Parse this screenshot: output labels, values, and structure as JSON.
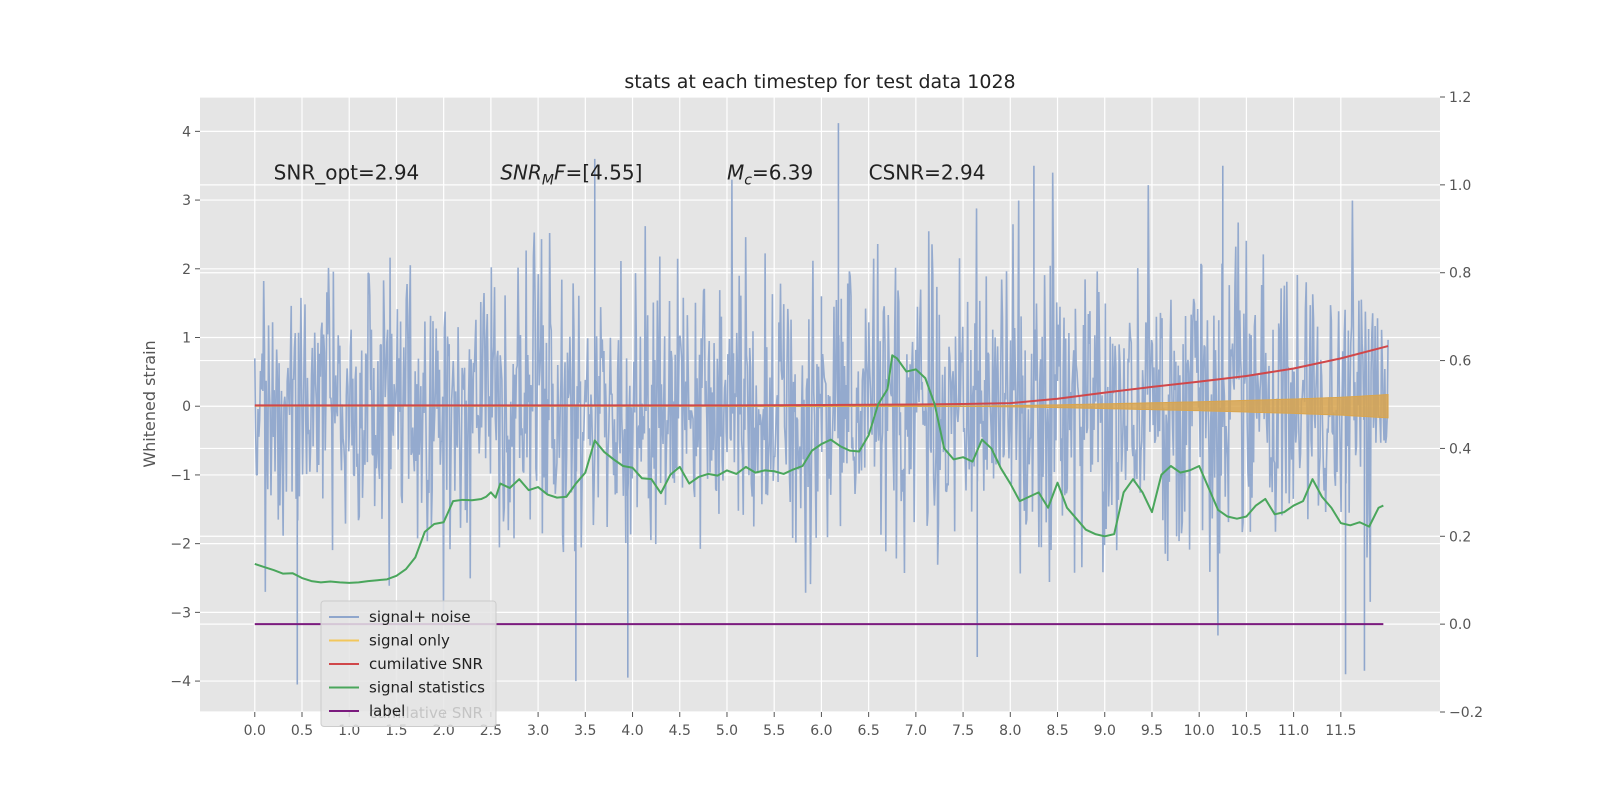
{
  "chart_data": {
    "type": "line",
    "title": "stats at each timestep for test data 1028",
    "ylabel": "Whitened strain",
    "xlabel": "",
    "xlim": [
      -0.58,
      12.55
    ],
    "ylim": [
      -4.45,
      4.5
    ],
    "y2lim": [
      -0.2,
      1.2
    ],
    "grid": true,
    "x_ticks": [
      "0.0",
      "0.5",
      "1.0",
      "1.5",
      "2.0",
      "2.5",
      "3.0",
      "3.5",
      "4.0",
      "4.5",
      "5.0",
      "5.5",
      "6.0",
      "6.5",
      "7.0",
      "7.5",
      "8.0",
      "8.5",
      "9.0",
      "9.5",
      "10.0",
      "10.5",
      "11.0",
      "11.5"
    ],
    "y_ticks": [
      "4",
      "3",
      "2",
      "1",
      "0",
      "−1",
      "−2",
      "−3",
      "−4"
    ],
    "y2_ticks": [
      "1.2",
      "1.0",
      "0.8",
      "0.6",
      "0.4",
      "0.2",
      "0.0",
      "−0.2"
    ],
    "annotations": [
      {
        "x": 0.2,
        "y": 3.3,
        "parts": [
          {
            "t": "SNR_opt=2.94",
            "style": "normal"
          }
        ]
      },
      {
        "x": 2.6,
        "y": 3.3,
        "parts": [
          {
            "t": "SNR",
            "style": "italic"
          },
          {
            "t": "M",
            "style": "italic-sub"
          },
          {
            "t": "F",
            "style": "italic"
          },
          {
            "t": "=[4.55]",
            "style": "normal"
          }
        ]
      },
      {
        "x": 5.0,
        "y": 3.3,
        "parts": [
          {
            "t": "M",
            "style": "italic"
          },
          {
            "t": "c",
            "style": "italic-sub"
          },
          {
            "t": "=6.39",
            "style": "normal"
          }
        ]
      },
      {
        "x": 6.5,
        "y": 3.3,
        "parts": [
          {
            "t": "CSNR=2.94",
            "style": "normal"
          }
        ]
      }
    ],
    "legend": {
      "placement": "lower-left",
      "ghost_text": "cumilative SNR",
      "entries": [
        {
          "label": "signal+ noise",
          "color": "#8fa6cc"
        },
        {
          "label": "signal only",
          "color": "#f2c75c"
        },
        {
          "label": "cumilative SNR",
          "color": "#d0474a"
        },
        {
          "label": "signal statistics",
          "color": "#4aa65c"
        },
        {
          "label": "label",
          "color": "#7b1b7e"
        }
      ]
    },
    "series": [
      {
        "name": "signal+ noise",
        "axis": "left",
        "color": "#8fa6cc",
        "kind": "noise",
        "x_range": [
          0.0,
          12.0
        ],
        "samples": 1400,
        "std": 1.0,
        "spike_events": [
          {
            "x": 6.18,
            "y": 4.12
          },
          {
            "x": 6.0,
            "y": 1.6
          },
          {
            "x": 3.4,
            "y": -4.0
          },
          {
            "x": 3.95,
            "y": -3.95
          },
          {
            "x": 0.45,
            "y": -4.05
          },
          {
            "x": 11.55,
            "y": -3.9
          },
          {
            "x": 11.75,
            "y": -3.85
          },
          {
            "x": 7.65,
            "y": -3.65
          },
          {
            "x": 3.6,
            "y": 3.6
          },
          {
            "x": 8.25,
            "y": 3.5
          },
          {
            "x": 10.25,
            "y": 3.5
          }
        ]
      },
      {
        "name": "signal only",
        "axis": "left",
        "color": "#e8a93a",
        "kind": "band",
        "x": [
          0,
          7.8,
          8.5,
          9.0,
          9.5,
          10.0,
          10.5,
          11.0,
          11.5,
          12.0
        ],
        "amp": [
          0,
          0.005,
          0.02,
          0.035,
          0.05,
          0.065,
          0.085,
          0.105,
          0.13,
          0.17
        ]
      },
      {
        "name": "cumilative SNR",
        "axis": "right",
        "color": "#d0474a",
        "x": [
          0,
          1,
          2,
          3,
          4,
          5,
          6,
          7,
          7.5,
          8.0,
          8.5,
          9.0,
          9.5,
          10.0,
          10.5,
          11.0,
          11.5,
          12.0
        ],
        "y": [
          0.498,
          0.498,
          0.498,
          0.498,
          0.498,
          0.498,
          0.499,
          0.5,
          0.501,
          0.503,
          0.513,
          0.527,
          0.54,
          0.552,
          0.565,
          0.582,
          0.605,
          0.633
        ]
      },
      {
        "name": "signal statistics",
        "axis": "right",
        "color": "#4aa65c",
        "x": [
          0.0,
          0.1,
          0.2,
          0.3,
          0.4,
          0.5,
          0.6,
          0.7,
          0.8,
          0.9,
          1.0,
          1.1,
          1.2,
          1.3,
          1.4,
          1.5,
          1.6,
          1.7,
          1.8,
          1.9,
          2.0,
          2.1,
          2.2,
          2.3,
          2.4,
          2.45,
          2.5,
          2.55,
          2.6,
          2.7,
          2.8,
          2.9,
          3.0,
          3.1,
          3.2,
          3.3,
          3.4,
          3.5,
          3.6,
          3.7,
          3.8,
          3.9,
          4.0,
          4.1,
          4.2,
          4.3,
          4.4,
          4.5,
          4.6,
          4.7,
          4.8,
          4.9,
          5.0,
          5.1,
          5.2,
          5.3,
          5.4,
          5.5,
          5.6,
          5.7,
          5.8,
          5.9,
          6.0,
          6.1,
          6.2,
          6.3,
          6.4,
          6.5,
          6.6,
          6.7,
          6.75,
          6.8,
          6.9,
          7.0,
          7.1,
          7.2,
          7.3,
          7.4,
          7.5,
          7.6,
          7.7,
          7.8,
          7.9,
          8.0,
          8.1,
          8.2,
          8.3,
          8.4,
          8.5,
          8.6,
          8.7,
          8.8,
          8.9,
          9.0,
          9.1,
          9.2,
          9.3,
          9.4,
          9.5,
          9.6,
          9.7,
          9.8,
          9.9,
          10.0,
          10.1,
          10.2,
          10.3,
          10.4,
          10.5,
          10.6,
          10.7,
          10.8,
          10.9,
          11.0,
          11.1,
          11.2,
          11.3,
          11.4,
          11.5,
          11.6,
          11.7,
          11.8,
          11.9,
          11.95
        ],
        "y": [
          0.137,
          0.13,
          0.123,
          0.115,
          0.116,
          0.105,
          0.098,
          0.095,
          0.097,
          0.095,
          0.094,
          0.095,
          0.098,
          0.1,
          0.102,
          0.11,
          0.125,
          0.152,
          0.21,
          0.228,
          0.232,
          0.28,
          0.283,
          0.282,
          0.285,
          0.29,
          0.3,
          0.288,
          0.32,
          0.31,
          0.33,
          0.305,
          0.312,
          0.295,
          0.288,
          0.29,
          0.32,
          0.345,
          0.418,
          0.392,
          0.375,
          0.36,
          0.356,
          0.332,
          0.33,
          0.298,
          0.34,
          0.358,
          0.32,
          0.335,
          0.342,
          0.338,
          0.35,
          0.342,
          0.358,
          0.345,
          0.35,
          0.348,
          0.342,
          0.352,
          0.36,
          0.395,
          0.41,
          0.42,
          0.405,
          0.395,
          0.393,
          0.43,
          0.5,
          0.535,
          0.612,
          0.605,
          0.575,
          0.58,
          0.56,
          0.5,
          0.4,
          0.375,
          0.38,
          0.37,
          0.42,
          0.4,
          0.355,
          0.32,
          0.28,
          0.29,
          0.3,
          0.265,
          0.322,
          0.265,
          0.24,
          0.215,
          0.205,
          0.2,
          0.205,
          0.3,
          0.33,
          0.3,
          0.255,
          0.34,
          0.36,
          0.345,
          0.35,
          0.36,
          0.31,
          0.26,
          0.245,
          0.24,
          0.245,
          0.27,
          0.285,
          0.25,
          0.255,
          0.27,
          0.28,
          0.33,
          0.29,
          0.265,
          0.23,
          0.225,
          0.232,
          0.222,
          0.265,
          0.27
        ]
      },
      {
        "name": "label",
        "axis": "right",
        "color": "#7b1b7e",
        "x": [
          0.0,
          11.95
        ],
        "y": [
          0.0,
          0.0
        ]
      }
    ]
  }
}
